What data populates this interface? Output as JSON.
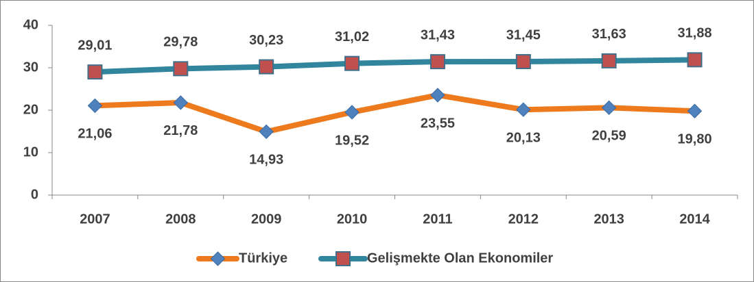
{
  "chart_data": {
    "type": "line",
    "categories": [
      "2007",
      "2008",
      "2009",
      "2010",
      "2011",
      "2012",
      "2013",
      "2014"
    ],
    "series": [
      {
        "name": "Türkiye",
        "color": "#EE7A1E",
        "marker_color": "#4F81BD",
        "values": [
          21.06,
          21.78,
          14.93,
          19.52,
          23.55,
          20.13,
          20.59,
          19.8
        ],
        "value_labels": [
          "21,06",
          "21,78",
          "14,93",
          "19,52",
          "23,55",
          "20,13",
          "20,59",
          "19,80"
        ]
      },
      {
        "name": "Gelişmekte Olan Ekonomiler",
        "color": "#31859C",
        "marker_color": "#C0504D",
        "values": [
          29.01,
          29.78,
          30.23,
          31.02,
          31.43,
          31.45,
          31.63,
          31.88
        ],
        "value_labels": [
          "29,01",
          "29,78",
          "30,23",
          "31,02",
          "31,43",
          "31,45",
          "31,63",
          "31,88"
        ]
      }
    ],
    "ylim": [
      0,
      40
    ],
    "yticks": [
      0,
      10,
      20,
      30,
      40
    ],
    "grid": false,
    "legend": "bottom"
  }
}
